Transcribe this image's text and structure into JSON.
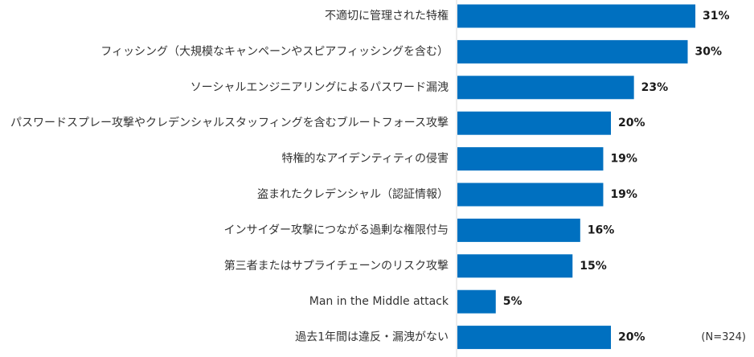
{
  "chart_data": {
    "type": "bar",
    "orientation": "horizontal",
    "categories": [
      "不適切に管理された特権",
      "フィッシング（大規模なキャンペーンやスピアフィッシングを含む）",
      "ソーシャルエンジニアリングによるパスワード漏洩",
      "パスワードスプレー攻撃やクレデンシャルスタッフィングを含むブルートフォース攻撃",
      "特権的なアイデンティティの侵害",
      "盗まれたクレデンシャル（認証情報）",
      "インサイダー攻撃につながる過剰な権限付与",
      "第三者またはサプライチェーンのリスク攻撃",
      "Man in the Middle attack",
      "過去1年間は違反・漏洩がない"
    ],
    "values": [
      31,
      30,
      23,
      20,
      19,
      19,
      16,
      15,
      5,
      20
    ],
    "value_labels": [
      "31%",
      "30%",
      "23%",
      "20%",
      "19%",
      "19%",
      "16%",
      "15%",
      "5%",
      "20%"
    ],
    "unit": "%",
    "note": "(N=324)",
    "bar_color": "#0070c0",
    "axis_color": "#d9d9d9",
    "grid": false,
    "legend": "none"
  }
}
